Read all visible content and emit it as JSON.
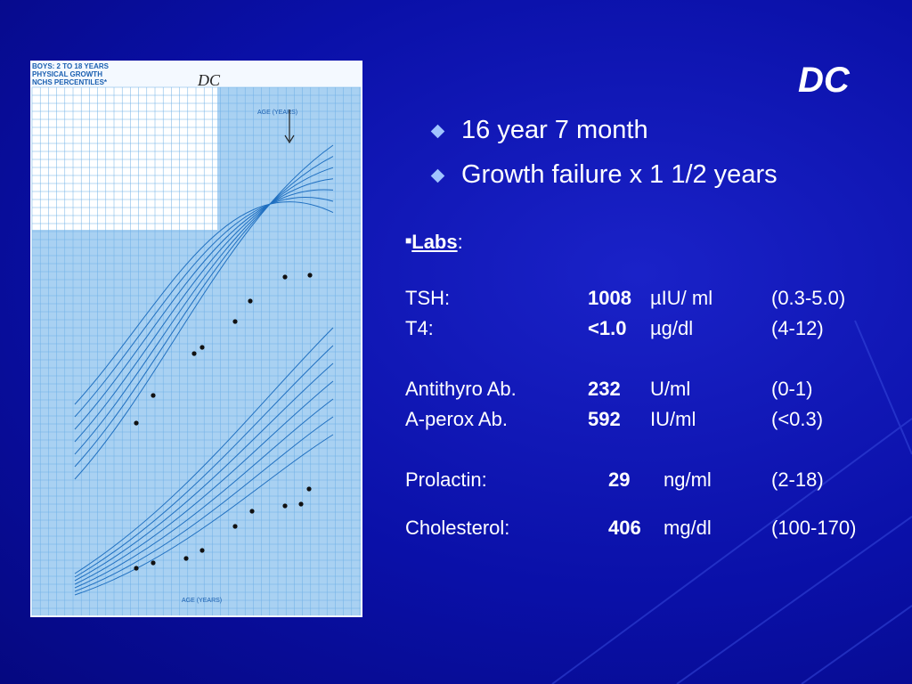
{
  "title": "DC",
  "bullets": [
    "16 year 7 month",
    "Growth failure x 1 1/2 years"
  ],
  "labs": {
    "heading": "Labs",
    "heading_suffix": ":",
    "rows": [
      {
        "name": "TSH:",
        "value": "1008",
        "unit": "µIU/ ml",
        "range": "(0.3-5.0)"
      },
      {
        "name": "T4:",
        "value": "<1.0",
        "unit": "µg/dl",
        "range": "(4-12)"
      },
      {
        "name": "Antithyro Ab.",
        "value": "232",
        "unit": "U/ml",
        "range": "(0-1)"
      },
      {
        "name": "A-perox Ab.",
        "value": "592",
        "unit": "IU/ml",
        "range": "(<0.3)"
      },
      {
        "name": "Prolactin:",
        "value": "29",
        "unit": "ng/ml",
        "range": "(2-18)"
      },
      {
        "name": "Cholesterol:",
        "value": "406",
        "unit": "mg/dl",
        "range": "(100-170)"
      }
    ]
  },
  "growth_chart": {
    "header": [
      "BOYS: 2 TO 18 YEARS",
      "PHYSICAL GROWTH",
      "NCHS PERCENTILES*"
    ],
    "handwritten": "DC",
    "age_label": "AGE (YEARS)"
  }
}
